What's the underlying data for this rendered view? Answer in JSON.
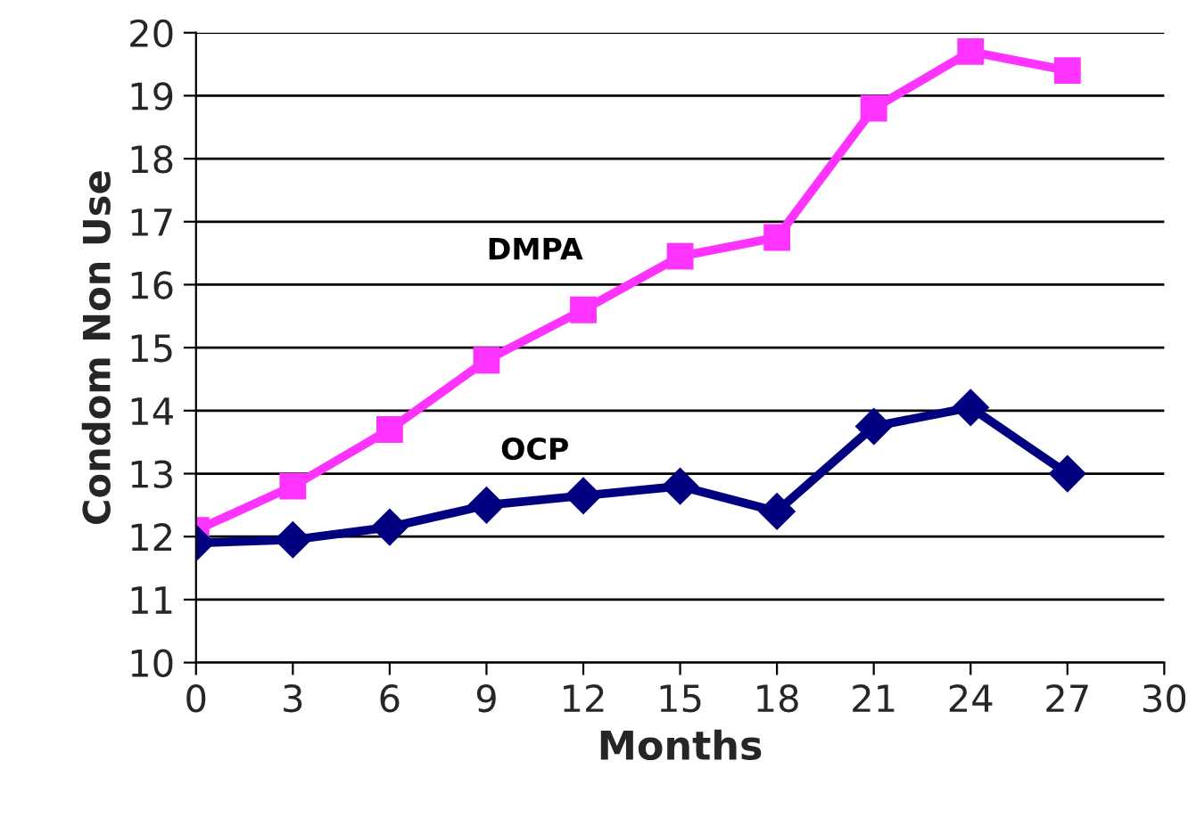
{
  "chart_data": {
    "type": "line",
    "xlabel": "Months",
    "ylabel": "Condom Non Use",
    "x": [
      0,
      3,
      6,
      9,
      12,
      15,
      18,
      21,
      24,
      27
    ],
    "series": [
      {
        "name": "DMPA",
        "color": "#ff33ff",
        "marker": "square",
        "values": [
          12.1,
          12.8,
          13.7,
          14.8,
          15.6,
          16.45,
          16.75,
          18.8,
          19.7,
          19.4
        ]
      },
      {
        "name": "OCP",
        "color": "#000080",
        "marker": "diamond",
        "values": [
          11.9,
          11.95,
          12.15,
          12.5,
          12.65,
          12.8,
          12.4,
          13.75,
          14.05,
          13.0
        ]
      }
    ],
    "xlim": [
      0,
      30
    ],
    "xticks": [
      0,
      3,
      6,
      9,
      12,
      15,
      18,
      21,
      24,
      27,
      30
    ],
    "ylim": [
      10,
      20
    ],
    "yticks": [
      10,
      11,
      12,
      13,
      14,
      15,
      16,
      17,
      18,
      19,
      20
    ],
    "grid": "y",
    "line_style": "solid",
    "legend": false
  }
}
